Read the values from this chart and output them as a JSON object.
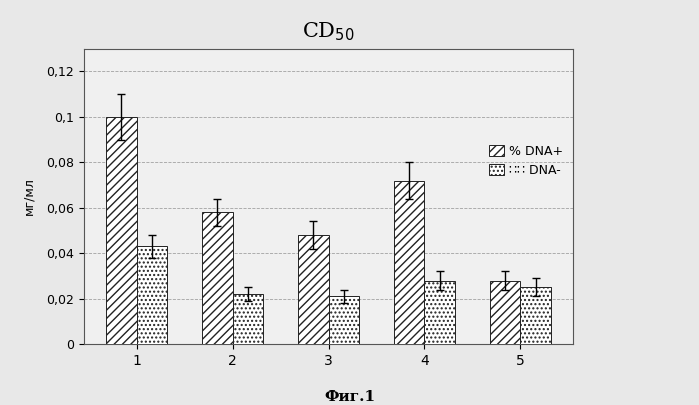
{
  "title": "CD$_{50}$",
  "ylabel": "мг/мл",
  "xlabel_caption": "Фиг.1",
  "categories": [
    "1",
    "2",
    "3",
    "4",
    "5"
  ],
  "dna_plus": [
    0.1,
    0.058,
    0.048,
    0.072,
    0.028
  ],
  "dna_minus": [
    0.043,
    0.022,
    0.021,
    0.028,
    0.025
  ],
  "dna_plus_err": [
    0.01,
    0.006,
    0.006,
    0.008,
    0.004
  ],
  "dna_minus_err": [
    0.005,
    0.003,
    0.003,
    0.004,
    0.004
  ],
  "ylim": [
    0,
    0.13
  ],
  "yticks": [
    0,
    0.02,
    0.04,
    0.06,
    0.08,
    0.1,
    0.12
  ],
  "ytick_labels": [
    "0",
    "0,02",
    "0,04",
    "0,06",
    "0,08",
    "0,1",
    "0,12"
  ],
  "legend_dna_plus": "% DNA+",
  "legend_dna_minus": "∷∷ DNA-",
  "bar_width": 0.32,
  "background_color": "#e8e8e8",
  "plot_bg_color": "#f0f0f0",
  "hatch_plus": "////",
  "hatch_minus": "....",
  "grid_color": "#999999",
  "bar_edge_color": "#222222",
  "bar_color": "#ffffff",
  "title_fontsize": 15,
  "tick_fontsize": 9,
  "ylabel_fontsize": 9
}
